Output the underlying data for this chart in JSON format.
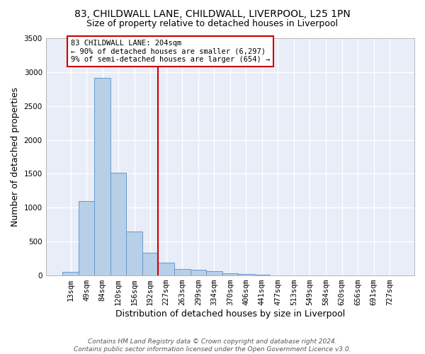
{
  "title_line1": "83, CHILDWALL LANE, CHILDWALL, LIVERPOOL, L25 1PN",
  "title_line2": "Size of property relative to detached houses in Liverpool",
  "xlabel": "Distribution of detached houses by size in Liverpool",
  "ylabel": "Number of detached properties",
  "categories": [
    "13sqm",
    "49sqm",
    "84sqm",
    "120sqm",
    "156sqm",
    "192sqm",
    "227sqm",
    "263sqm",
    "299sqm",
    "334sqm",
    "370sqm",
    "406sqm",
    "441sqm",
    "477sqm",
    "513sqm",
    "549sqm",
    "584sqm",
    "620sqm",
    "656sqm",
    "691sqm",
    "727sqm"
  ],
  "values": [
    55,
    1100,
    2920,
    1520,
    650,
    340,
    190,
    100,
    85,
    60,
    30,
    20,
    10,
    5,
    3,
    2,
    2,
    2,
    1,
    1,
    1
  ],
  "bar_color": "#b8cfe8",
  "bar_edge_color": "#6699cc",
  "vline_color": "#cc0000",
  "annotation_text": "83 CHILDWALL LANE: 204sqm\n← 90% of detached houses are smaller (6,297)\n9% of semi-detached houses are larger (654) →",
  "annotation_box_color": "#cc0000",
  "ylim": [
    0,
    3500
  ],
  "yticks": [
    0,
    500,
    1000,
    1500,
    2000,
    2500,
    3000,
    3500
  ],
  "background_color": "#e8edf8",
  "grid_color": "#ffffff",
  "footnote": "Contains HM Land Registry data © Crown copyright and database right 2024.\nContains public sector information licensed under the Open Government Licence v3.0.",
  "title_fontsize": 10,
  "subtitle_fontsize": 9,
  "axis_label_fontsize": 9,
  "tick_fontsize": 7.5
}
